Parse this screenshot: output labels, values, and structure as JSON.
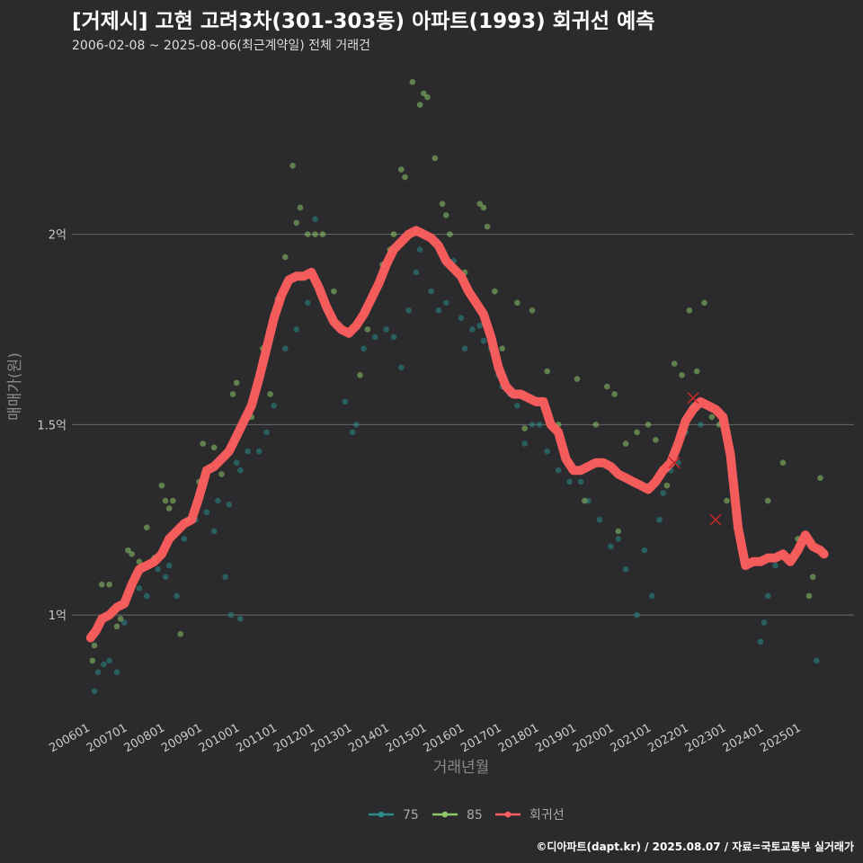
{
  "header": {
    "title": "[거제시] 고현 고려3차(301-303동) 아파트(1993) 회귀선 예측",
    "subtitle": "2006-02-08 ~ 2025-08-06(최근계약일) 전체 거래건"
  },
  "footer": {
    "credit": "©디아파트(dapt.kr) / 2025.08.07 / 자료=국토교통부 실거래가"
  },
  "chart_data": {
    "type": "scatter",
    "xlabel": "거래년월",
    "ylabel": "매매가(원)",
    "ylim": [
      0.75,
      2.45
    ],
    "xlim": [
      2005.5,
      2026.4
    ],
    "grid": "horizontal",
    "legend_position": "bottom",
    "y_ticks": [
      {
        "value": 1.0,
        "label": "1억"
      },
      {
        "value": 1.5,
        "label": "1.5억"
      },
      {
        "value": 2.0,
        "label": "2억"
      }
    ],
    "x_ticks": [
      {
        "value": 2006.0,
        "label": "200601"
      },
      {
        "value": 2007.0,
        "label": "200701"
      },
      {
        "value": 2008.0,
        "label": "200801"
      },
      {
        "value": 2009.0,
        "label": "200901"
      },
      {
        "value": 2010.0,
        "label": "201001"
      },
      {
        "value": 2011.0,
        "label": "201101"
      },
      {
        "value": 2012.0,
        "label": "201201"
      },
      {
        "value": 2013.0,
        "label": "201301"
      },
      {
        "value": 2014.0,
        "label": "201401"
      },
      {
        "value": 2015.0,
        "label": "201501"
      },
      {
        "value": 2016.0,
        "label": "201601"
      },
      {
        "value": 2017.0,
        "label": "201701"
      },
      {
        "value": 2018.0,
        "label": "201801"
      },
      {
        "value": 2019.0,
        "label": "201901"
      },
      {
        "value": 2020.0,
        "label": "202001"
      },
      {
        "value": 2021.0,
        "label": "202101"
      },
      {
        "value": 2022.0,
        "label": "202201"
      },
      {
        "value": 2023.0,
        "label": "202301"
      },
      {
        "value": 2024.0,
        "label": "202401"
      },
      {
        "value": 2025.0,
        "label": "202501"
      }
    ],
    "series": [
      {
        "name": "75",
        "color": "#2a8a8a",
        "points": [
          [
            2006.1,
            0.8
          ],
          [
            2006.2,
            0.85
          ],
          [
            2006.35,
            0.87
          ],
          [
            2006.5,
            0.88
          ],
          [
            2006.7,
            0.85
          ],
          [
            2006.9,
            0.98
          ],
          [
            2007.3,
            1.07
          ],
          [
            2007.5,
            1.05
          ],
          [
            2007.8,
            1.12
          ],
          [
            2008.0,
            1.1
          ],
          [
            2008.1,
            1.13
          ],
          [
            2008.3,
            1.05
          ],
          [
            2008.5,
            1.2
          ],
          [
            2008.8,
            1.25
          ],
          [
            2009.1,
            1.27
          ],
          [
            2009.3,
            1.22
          ],
          [
            2009.4,
            1.3
          ],
          [
            2009.6,
            1.1
          ],
          [
            2009.7,
            1.29
          ],
          [
            2009.9,
            1.4
          ],
          [
            2010.0,
            1.38
          ],
          [
            2010.2,
            1.43
          ],
          [
            2010.5,
            1.43
          ],
          [
            2009.75,
            1.0
          ],
          [
            2010.0,
            0.99
          ],
          [
            2010.7,
            1.48
          ],
          [
            2010.9,
            1.55
          ],
          [
            2011.2,
            1.7
          ],
          [
            2011.5,
            1.75
          ],
          [
            2011.8,
            1.82
          ],
          [
            2012.0,
            2.04
          ],
          [
            2012.3,
            1.8
          ],
          [
            2012.5,
            1.77
          ],
          [
            2012.8,
            1.56
          ],
          [
            2013.0,
            1.48
          ],
          [
            2013.1,
            1.5
          ],
          [
            2013.3,
            1.7
          ],
          [
            2013.6,
            1.73
          ],
          [
            2013.9,
            1.75
          ],
          [
            2014.1,
            1.73
          ],
          [
            2014.3,
            1.65
          ],
          [
            2014.5,
            1.8
          ],
          [
            2014.7,
            1.9
          ],
          [
            2014.8,
            1.96
          ],
          [
            2014.9,
            2.0
          ],
          [
            2015.1,
            1.85
          ],
          [
            2015.3,
            1.8
          ],
          [
            2015.5,
            1.82
          ],
          [
            2015.7,
            1.93
          ],
          [
            2015.9,
            1.78
          ],
          [
            2016.0,
            1.7
          ],
          [
            2016.2,
            1.75
          ],
          [
            2016.4,
            1.76
          ],
          [
            2016.5,
            1.72
          ],
          [
            2016.7,
            1.7
          ],
          [
            2016.9,
            1.63
          ],
          [
            2017.0,
            1.6
          ],
          [
            2017.2,
            1.58
          ],
          [
            2017.4,
            1.55
          ],
          [
            2017.6,
            1.45
          ],
          [
            2017.8,
            1.5
          ],
          [
            2018.0,
            1.5
          ],
          [
            2018.2,
            1.43
          ],
          [
            2018.5,
            1.38
          ],
          [
            2018.8,
            1.35
          ],
          [
            2019.1,
            1.35
          ],
          [
            2019.3,
            1.3
          ],
          [
            2019.6,
            1.25
          ],
          [
            2019.9,
            1.18
          ],
          [
            2020.1,
            1.2
          ],
          [
            2020.3,
            1.12
          ],
          [
            2020.6,
            1.0
          ],
          [
            2020.8,
            1.17
          ],
          [
            2021.0,
            1.05
          ],
          [
            2021.2,
            1.25
          ],
          [
            2021.3,
            1.32
          ],
          [
            2021.5,
            1.38
          ],
          [
            2021.7,
            1.4
          ],
          [
            2021.9,
            1.48
          ],
          [
            2022.1,
            1.55
          ],
          [
            2022.3,
            1.5
          ],
          [
            2023.9,
            0.93
          ],
          [
            2024.0,
            0.98
          ],
          [
            2024.1,
            1.05
          ],
          [
            2024.3,
            1.13
          ],
          [
            2024.8,
            1.15
          ],
          [
            2025.4,
            0.88
          ],
          [
            2025.6,
            1.16
          ]
        ]
      },
      {
        "name": "85",
        "color": "#8dc86a",
        "points": [
          [
            2006.05,
            0.88
          ],
          [
            2006.1,
            0.92
          ],
          [
            2006.3,
            1.08
          ],
          [
            2006.5,
            1.08
          ],
          [
            2006.7,
            0.97
          ],
          [
            2006.8,
            0.99
          ],
          [
            2007.0,
            1.17
          ],
          [
            2007.1,
            1.16
          ],
          [
            2007.3,
            1.14
          ],
          [
            2007.5,
            1.23
          ],
          [
            2007.7,
            1.15
          ],
          [
            2007.9,
            1.34
          ],
          [
            2008.0,
            1.3
          ],
          [
            2008.1,
            1.28
          ],
          [
            2008.2,
            1.3
          ],
          [
            2008.4,
            0.95
          ],
          [
            2008.6,
            1.25
          ],
          [
            2008.9,
            1.35
          ],
          [
            2009.0,
            1.45
          ],
          [
            2009.3,
            1.44
          ],
          [
            2009.5,
            1.37
          ],
          [
            2009.8,
            1.58
          ],
          [
            2009.9,
            1.61
          ],
          [
            2010.3,
            1.52
          ],
          [
            2010.6,
            1.7
          ],
          [
            2010.8,
            1.58
          ],
          [
            2011.0,
            1.83
          ],
          [
            2011.2,
            1.94
          ],
          [
            2011.4,
            2.18
          ],
          [
            2011.5,
            2.03
          ],
          [
            2011.6,
            2.07
          ],
          [
            2011.8,
            2.0
          ],
          [
            2012.0,
            2.0
          ],
          [
            2012.2,
            2.0
          ],
          [
            2012.5,
            1.85
          ],
          [
            2013.2,
            1.63
          ],
          [
            2013.4,
            1.75
          ],
          [
            2013.8,
            1.92
          ],
          [
            2014.0,
            1.96
          ],
          [
            2014.1,
            2.0
          ],
          [
            2014.3,
            2.17
          ],
          [
            2014.4,
            2.15
          ],
          [
            2014.6,
            2.4
          ],
          [
            2014.8,
            2.34
          ],
          [
            2014.9,
            2.37
          ],
          [
            2015.0,
            2.36
          ],
          [
            2015.2,
            2.2
          ],
          [
            2015.4,
            2.08
          ],
          [
            2015.5,
            2.05
          ],
          [
            2015.6,
            2.0
          ],
          [
            2016.0,
            1.9
          ],
          [
            2016.4,
            2.08
          ],
          [
            2016.5,
            2.07
          ],
          [
            2016.6,
            2.02
          ],
          [
            2016.8,
            1.85
          ],
          [
            2017.0,
            1.7
          ],
          [
            2017.4,
            1.82
          ],
          [
            2017.6,
            1.49
          ],
          [
            2017.8,
            1.8
          ],
          [
            2018.2,
            1.64
          ],
          [
            2018.5,
            1.5
          ],
          [
            2018.8,
            1.4
          ],
          [
            2019.0,
            1.62
          ],
          [
            2019.2,
            1.3
          ],
          [
            2019.5,
            1.5
          ],
          [
            2019.8,
            1.6
          ],
          [
            2020.0,
            1.58
          ],
          [
            2020.1,
            1.22
          ],
          [
            2020.3,
            1.45
          ],
          [
            2020.6,
            1.48
          ],
          [
            2020.9,
            1.5
          ],
          [
            2021.1,
            1.46
          ],
          [
            2021.4,
            1.34
          ],
          [
            2021.6,
            1.66
          ],
          [
            2021.8,
            1.63
          ],
          [
            2022.0,
            1.8
          ],
          [
            2022.2,
            1.64
          ],
          [
            2022.4,
            1.82
          ],
          [
            2022.6,
            1.52
          ],
          [
            2022.8,
            1.5
          ],
          [
            2023.0,
            1.3
          ],
          [
            2024.5,
            1.4
          ],
          [
            2024.9,
            1.2
          ],
          [
            2025.2,
            1.05
          ],
          [
            2025.3,
            1.1
          ],
          [
            2025.5,
            1.36
          ],
          [
            2024.1,
            1.3
          ]
        ]
      }
    ],
    "regression": {
      "name": "회귀선",
      "color": "#ff5f5f",
      "points": [
        [
          2006.0,
          0.94
        ],
        [
          2006.15,
          0.96
        ],
        [
          2006.3,
          0.99
        ],
        [
          2006.5,
          1.0
        ],
        [
          2006.7,
          1.02
        ],
        [
          2006.9,
          1.03
        ],
        [
          2007.1,
          1.08
        ],
        [
          2007.3,
          1.12
        ],
        [
          2007.5,
          1.13
        ],
        [
          2007.7,
          1.14
        ],
        [
          2007.9,
          1.16
        ],
        [
          2008.1,
          1.2
        ],
        [
          2008.3,
          1.22
        ],
        [
          2008.5,
          1.24
        ],
        [
          2008.7,
          1.25
        ],
        [
          2008.9,
          1.31
        ],
        [
          2009.1,
          1.38
        ],
        [
          2009.3,
          1.39
        ],
        [
          2009.5,
          1.41
        ],
        [
          2009.7,
          1.43
        ],
        [
          2009.9,
          1.47
        ],
        [
          2010.1,
          1.51
        ],
        [
          2010.3,
          1.55
        ],
        [
          2010.5,
          1.62
        ],
        [
          2010.7,
          1.7
        ],
        [
          2010.9,
          1.78
        ],
        [
          2011.1,
          1.84
        ],
        [
          2011.3,
          1.88
        ],
        [
          2011.5,
          1.89
        ],
        [
          2011.7,
          1.89
        ],
        [
          2011.9,
          1.9
        ],
        [
          2012.1,
          1.86
        ],
        [
          2012.3,
          1.81
        ],
        [
          2012.5,
          1.77
        ],
        [
          2012.7,
          1.75
        ],
        [
          2012.9,
          1.74
        ],
        [
          2013.1,
          1.76
        ],
        [
          2013.3,
          1.79
        ],
        [
          2013.5,
          1.83
        ],
        [
          2013.7,
          1.87
        ],
        [
          2013.9,
          1.92
        ],
        [
          2014.1,
          1.96
        ],
        [
          2014.3,
          1.98
        ],
        [
          2014.5,
          2.0
        ],
        [
          2014.7,
          2.01
        ],
        [
          2014.9,
          2.0
        ],
        [
          2015.1,
          1.99
        ],
        [
          2015.3,
          1.97
        ],
        [
          2015.5,
          1.93
        ],
        [
          2015.7,
          1.91
        ],
        [
          2015.9,
          1.89
        ],
        [
          2016.1,
          1.85
        ],
        [
          2016.3,
          1.82
        ],
        [
          2016.5,
          1.79
        ],
        [
          2016.7,
          1.73
        ],
        [
          2016.9,
          1.65
        ],
        [
          2017.1,
          1.6
        ],
        [
          2017.3,
          1.58
        ],
        [
          2017.5,
          1.58
        ],
        [
          2017.7,
          1.57
        ],
        [
          2017.9,
          1.56
        ],
        [
          2018.1,
          1.56
        ],
        [
          2018.3,
          1.5
        ],
        [
          2018.5,
          1.48
        ],
        [
          2018.7,
          1.41
        ],
        [
          2018.9,
          1.38
        ],
        [
          2019.1,
          1.38
        ],
        [
          2019.3,
          1.39
        ],
        [
          2019.5,
          1.4
        ],
        [
          2019.7,
          1.4
        ],
        [
          2019.9,
          1.39
        ],
        [
          2020.1,
          1.37
        ],
        [
          2020.3,
          1.36
        ],
        [
          2020.5,
          1.35
        ],
        [
          2020.7,
          1.34
        ],
        [
          2020.9,
          1.33
        ],
        [
          2021.1,
          1.35
        ],
        [
          2021.3,
          1.38
        ],
        [
          2021.5,
          1.4
        ],
        [
          2021.7,
          1.45
        ],
        [
          2021.9,
          1.51
        ],
        [
          2022.1,
          1.54
        ],
        [
          2022.3,
          1.56
        ],
        [
          2022.5,
          1.55
        ],
        [
          2022.7,
          1.54
        ],
        [
          2022.9,
          1.52
        ],
        [
          2023.1,
          1.42
        ],
        [
          2023.3,
          1.23
        ],
        [
          2023.5,
          1.13
        ],
        [
          2023.7,
          1.14
        ],
        [
          2023.9,
          1.14
        ],
        [
          2024.1,
          1.15
        ],
        [
          2024.3,
          1.15
        ],
        [
          2024.5,
          1.16
        ],
        [
          2024.7,
          1.14
        ],
        [
          2024.9,
          1.17
        ],
        [
          2025.1,
          1.21
        ],
        [
          2025.3,
          1.18
        ],
        [
          2025.5,
          1.17
        ],
        [
          2025.6,
          1.16
        ]
      ]
    },
    "cross_markers": [
      [
        2021.6,
        1.4
      ],
      [
        2022.1,
        1.57
      ],
      [
        2022.7,
        1.25
      ]
    ]
  }
}
